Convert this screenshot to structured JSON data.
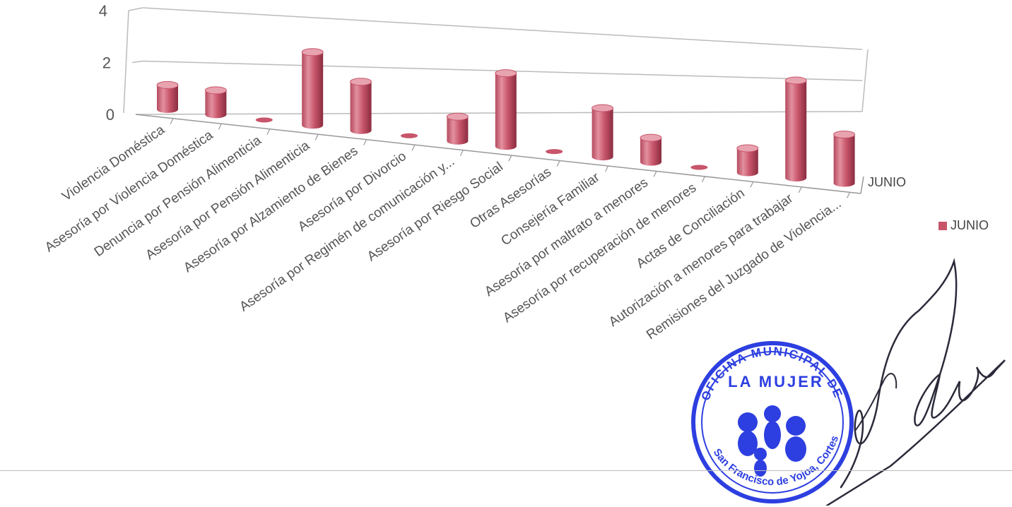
{
  "chart_data": {
    "type": "bar",
    "categories": [
      "Violencia Doméstica",
      "Asesoría por Violencia Doméstica",
      "Denuncia por Pensión Alimenticia",
      "Asesoría por Pensión Alimenticia",
      "Asesoría por Alzamiento de Bienes",
      "Asesoría por Divorcio",
      "Asesoría por Regimén de comunicación y...",
      "Asesoría por Riesgo Social",
      "Otras Asesorías",
      "Consejería Familiar",
      "Asesoría por maltrato a menores",
      "Asesoría por recuperación de menores",
      "Actas de Conciliación",
      "Autorización a menores para trabajar",
      "Remisiones del Juzgado de Violencia..."
    ],
    "series": [
      {
        "name": "JUNIO",
        "values": [
          1,
          1,
          0,
          3,
          2,
          0,
          1,
          3,
          0,
          2,
          1,
          0,
          1,
          4,
          2
        ]
      }
    ],
    "yticks": [
      "0",
      "2",
      "4"
    ],
    "ylim": [
      0,
      4
    ],
    "depth_axis_label": "JUNIO",
    "legend": {
      "entries": [
        "JUNIO"
      ],
      "position": "right"
    },
    "grid": true,
    "style": "3d-cylinder"
  },
  "colors": {
    "bar": "#c8556a",
    "bar_dark": "#9c3449",
    "bar_light": "#e8a3b0",
    "stamp": "#2d3fe0"
  },
  "stamp": {
    "top_text": "OFICINA MUNICIPAL DE",
    "center_text": "LA MUJER",
    "bottom_text": "San Francisco de Yojoa, Cortes"
  }
}
